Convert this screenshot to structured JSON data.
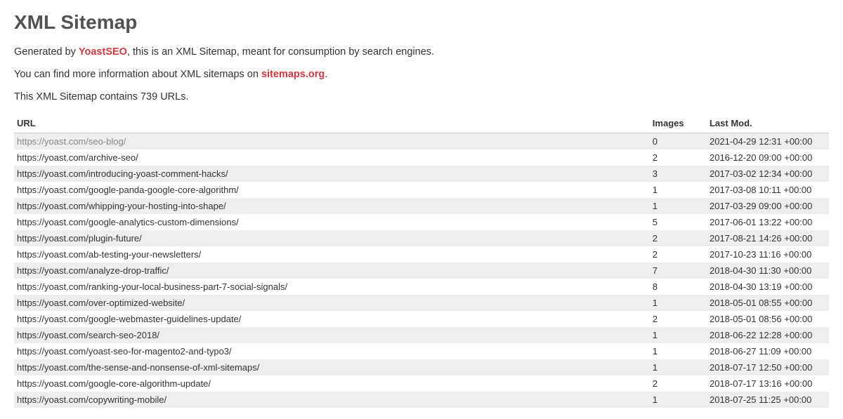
{
  "title": "XML Sitemap",
  "intro1_pre": "Generated by ",
  "intro1_link": "YoastSEO",
  "intro1_post": ", this is an XML Sitemap, meant for consumption by search engines.",
  "intro2_pre": "You can find more information about XML sitemaps on ",
  "intro2_link": "sitemaps.org",
  "intro2_post": ".",
  "count_line": "This XML Sitemap contains 739 URLs.",
  "columns": {
    "url": "URL",
    "images": "Images",
    "lastmod": "Last Mod."
  },
  "rows": [
    {
      "url": "https://yoast.com/seo-blog/",
      "images": "0",
      "lastmod": "2021-04-29 12:31 +00:00",
      "visited": true
    },
    {
      "url": "https://yoast.com/archive-seo/",
      "images": "2",
      "lastmod": "2016-12-20 09:00 +00:00"
    },
    {
      "url": "https://yoast.com/introducing-yoast-comment-hacks/",
      "images": "3",
      "lastmod": "2017-03-02 12:34 +00:00"
    },
    {
      "url": "https://yoast.com/google-panda-google-core-algorithm/",
      "images": "1",
      "lastmod": "2017-03-08 10:11 +00:00"
    },
    {
      "url": "https://yoast.com/whipping-your-hosting-into-shape/",
      "images": "1",
      "lastmod": "2017-03-29 09:00 +00:00"
    },
    {
      "url": "https://yoast.com/google-analytics-custom-dimensions/",
      "images": "5",
      "lastmod": "2017-06-01 13:22 +00:00"
    },
    {
      "url": "https://yoast.com/plugin-future/",
      "images": "2",
      "lastmod": "2017-08-21 14:26 +00:00"
    },
    {
      "url": "https://yoast.com/ab-testing-your-newsletters/",
      "images": "2",
      "lastmod": "2017-10-23 11:16 +00:00"
    },
    {
      "url": "https://yoast.com/analyze-drop-traffic/",
      "images": "7",
      "lastmod": "2018-04-30 11:30 +00:00"
    },
    {
      "url": "https://yoast.com/ranking-your-local-business-part-7-social-signals/",
      "images": "8",
      "lastmod": "2018-04-30 13:19 +00:00"
    },
    {
      "url": "https://yoast.com/over-optimized-website/",
      "images": "1",
      "lastmod": "2018-05-01 08:55 +00:00"
    },
    {
      "url": "https://yoast.com/google-webmaster-guidelines-update/",
      "images": "2",
      "lastmod": "2018-05-01 08:56 +00:00"
    },
    {
      "url": "https://yoast.com/search-seo-2018/",
      "images": "1",
      "lastmod": "2018-06-22 12:28 +00:00"
    },
    {
      "url": "https://yoast.com/yoast-seo-for-magento2-and-typo3/",
      "images": "1",
      "lastmod": "2018-06-27 11:09 +00:00"
    },
    {
      "url": "https://yoast.com/the-sense-and-nonsense-of-xml-sitemaps/",
      "images": "1",
      "lastmod": "2018-07-17 12:50 +00:00"
    },
    {
      "url": "https://yoast.com/google-core-algorithm-update/",
      "images": "2",
      "lastmod": "2018-07-17 13:16 +00:00"
    },
    {
      "url": "https://yoast.com/copywriting-mobile/",
      "images": "1",
      "lastmod": "2018-07-25 11:25 +00:00"
    }
  ]
}
